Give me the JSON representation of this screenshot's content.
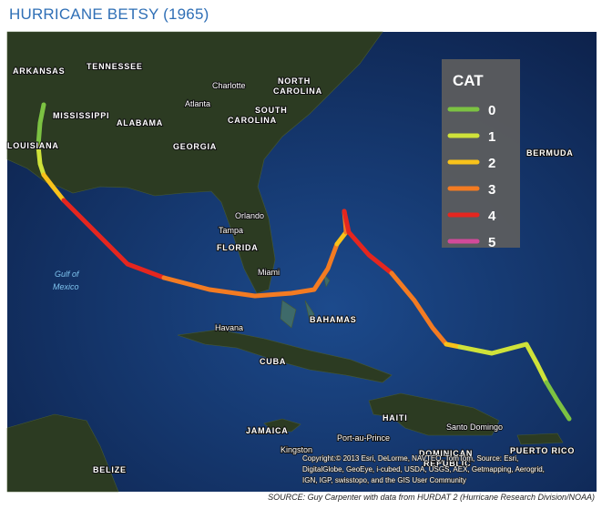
{
  "title": "HURRICANE BETSY (1965)",
  "legend": {
    "title": "CAT",
    "items": [
      {
        "label": "0",
        "color": "#7cc242"
      },
      {
        "label": "1",
        "color": "#cfe23a"
      },
      {
        "label": "2",
        "color": "#f8c21a"
      },
      {
        "label": "3",
        "color": "#f37b22"
      },
      {
        "label": "4",
        "color": "#e5261f"
      },
      {
        "label": "5",
        "color": "#d14a9a"
      }
    ]
  },
  "places": [
    "ARKANSAS",
    "TENNESSEE",
    "NORTH",
    "CAROLINA",
    "Charlotte",
    "MISSISSIPPI",
    "ALABAMA",
    "Atlanta",
    "SOUTH",
    "CAROLINA",
    "GEORGIA",
    "LOUISIANA",
    "Orlando",
    "Tampa",
    "FLORIDA",
    "Miami",
    "Gulf of",
    "Mexico",
    "BAHAMAS",
    "Havana",
    "CUBA",
    "BERMUDA",
    "HAITI",
    "Port-au-Prince",
    "Santo Domingo",
    "JAMAICA",
    "Kingston",
    "DOMINICAN",
    "REPUBLIC",
    "PUERTO RICO",
    "BELIZE"
  ],
  "copyright": [
    "Copyright:© 2013 Esri, DeLorme, NAVTEQ, TomTom, Source: Esri,",
    "DigitalGlobe, GeoEye, i-cubed, USDA, USGS, AEX, Getmapping, Aerogrid,",
    "IGN, IGP, swisstopo, and the GIS User Community"
  ],
  "source": "SOURCE: Guy Carpenter with data from HURDAT 2 (Hurricane Research Division/NOAA)"
}
